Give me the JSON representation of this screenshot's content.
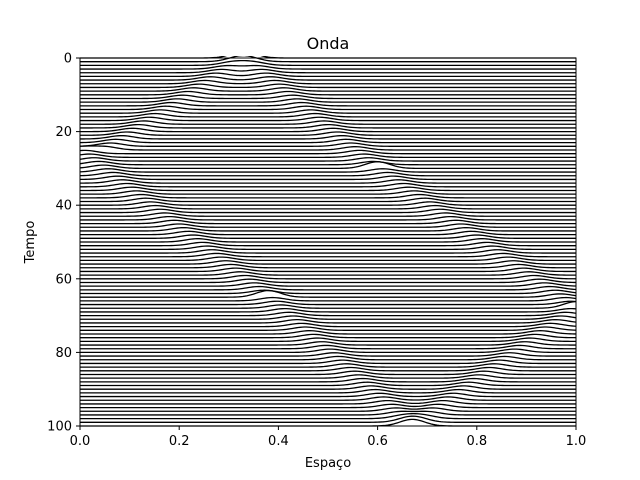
{
  "chart_data": {
    "type": "line",
    "title": "Onda",
    "xlabel": "Espaço",
    "ylabel": "Tempo",
    "xlim": [
      0.0,
      1.0
    ],
    "ylim": [
      100,
      0
    ],
    "y_inverted": true,
    "x_ticks": [
      0.0,
      0.2,
      0.4,
      0.6,
      0.8,
      1.0
    ],
    "x_tick_labels": [
      "0.0",
      "0.2",
      "0.4",
      "0.6",
      "0.8",
      "1.0"
    ],
    "y_ticks": [
      0,
      20,
      40,
      60,
      80,
      100
    ],
    "y_tick_labels": [
      "0",
      "20",
      "40",
      "60",
      "80",
      "100"
    ],
    "grid": false,
    "line_color": "#000000",
    "description_note": "",
    "time_steps": {
      "start": 0,
      "end": 100,
      "step": 1
    },
    "wave_fronts": [
      {
        "t": [
          0,
          25
        ],
        "x": [
          0.33,
          0.05
        ],
        "direction": "left"
      },
      {
        "t": [
          25,
          65
        ],
        "x": [
          0.0,
          0.38
        ],
        "direction": "right"
      },
      {
        "t": [
          0,
          30
        ],
        "x": [
          0.33,
          0.6
        ],
        "direction": "right"
      },
      {
        "t": [
          30,
          68
        ],
        "x": [
          0.6,
          1.0
        ],
        "direction": "right"
      },
      {
        "t": [
          68,
          100
        ],
        "x": [
          1.0,
          0.67
        ],
        "direction": "left"
      },
      {
        "t": [
          65,
          100
        ],
        "x": [
          0.38,
          0.67
        ],
        "direction": "right"
      }
    ],
    "pulse_amplitude": 0.9,
    "pulse_width": 0.035
  }
}
